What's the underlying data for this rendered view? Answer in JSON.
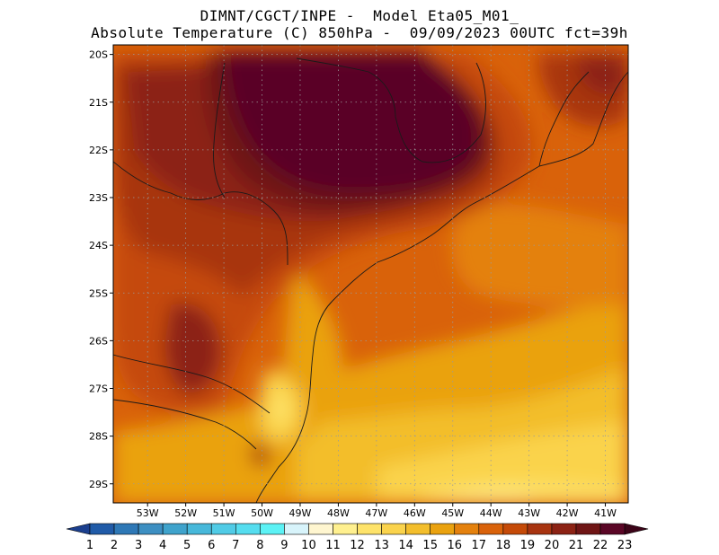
{
  "header": {
    "line1": "DIMNT/CGCT/INPE -  Model Eta05_M01_",
    "line2": "Absolute Temperature (C) 850hPa -  09/09/2023 00UTC fct=39h"
  },
  "map": {
    "lat_labels": [
      "20S",
      "21S",
      "22S",
      "23S",
      "24S",
      "25S",
      "26S",
      "27S",
      "28S",
      "29S"
    ],
    "lon_labels": [
      "53W",
      "52W",
      "51W",
      "50W",
      "49W",
      "48W",
      "47W",
      "46W",
      "45W",
      "44W",
      "43W",
      "42W",
      "41W"
    ],
    "lat_range": [
      -29.4,
      -19.8
    ],
    "lon_range": [
      -53.9,
      -40.4
    ],
    "grid": "dotted"
  },
  "colorbar": {
    "labels": [
      "1",
      "2",
      "3",
      "4",
      "5",
      "6",
      "7",
      "8",
      "9",
      "10",
      "11",
      "12",
      "13",
      "14",
      "15",
      "16",
      "17",
      "18",
      "19",
      "20",
      "21",
      "22",
      "23"
    ],
    "colors": [
      "#1b3f8e",
      "#205ba8",
      "#2e78b6",
      "#3d8fc2",
      "#3fa3cc",
      "#47b8da",
      "#50cbe6",
      "#55ddef",
      "#5cf2f5",
      "#d8f4fb",
      "#fff6d0",
      "#fff08f",
      "#fee36a",
      "#fad34c",
      "#f3be2c",
      "#eaa20f",
      "#e4810d",
      "#d9620a",
      "#c54a08",
      "#a83410",
      "#8c2214",
      "#6f1515",
      "#5a0626",
      "#3c0418"
    ]
  },
  "field": {
    "units": "C",
    "min_shown": 12,
    "max_shown": 23
  }
}
